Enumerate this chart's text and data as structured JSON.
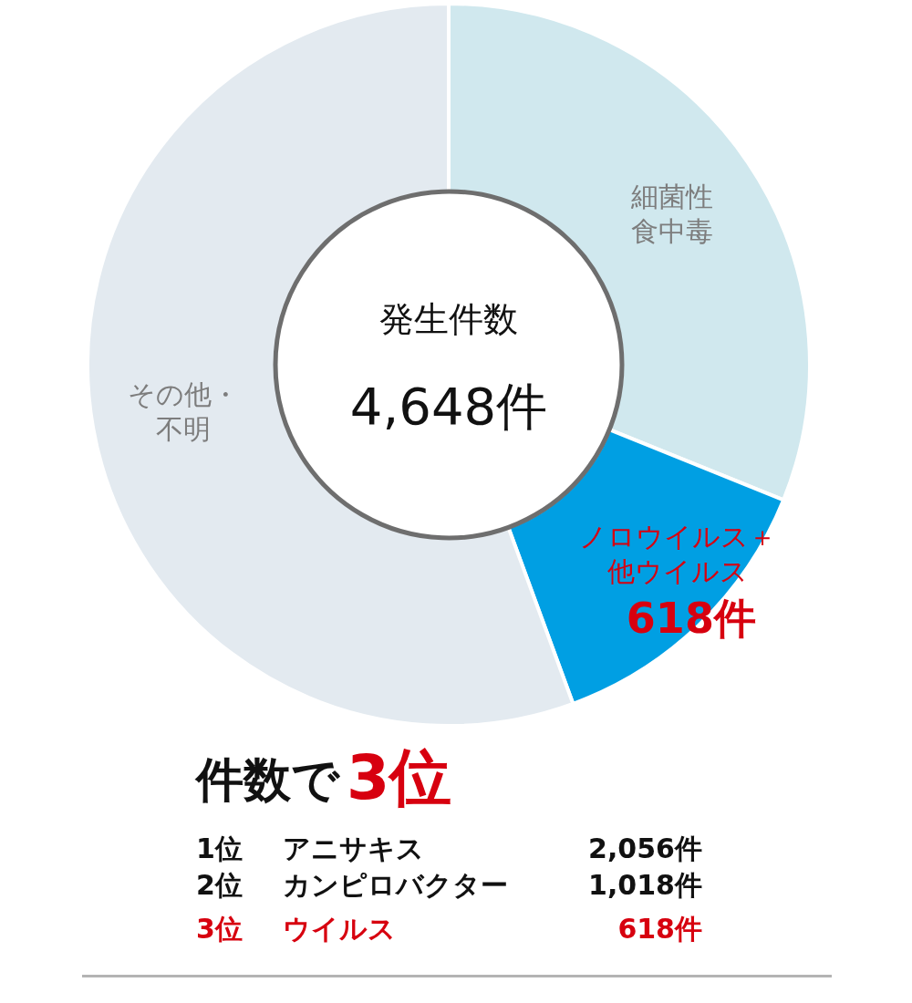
{
  "chart_data": {
    "type": "donut",
    "categories": [
      "細菌性食中毒",
      "ノロウイルス＋他ウイルス",
      "その他・不明"
    ],
    "values": [
      1446,
      618,
      2584
    ],
    "colors": [
      "#d0e8ee",
      "#009fe3",
      "#e3eaf0"
    ],
    "value_labels": [
      null,
      "618件",
      null
    ],
    "legend": false,
    "annotations": [
      "発生件数",
      "4,648件",
      "件数で",
      "3位",
      "1位",
      "アニサキス",
      "2,056件",
      "2位",
      "カンピロバクター",
      "1,018件",
      "3位",
      "ウイルス",
      "618件"
    ]
  }
}
